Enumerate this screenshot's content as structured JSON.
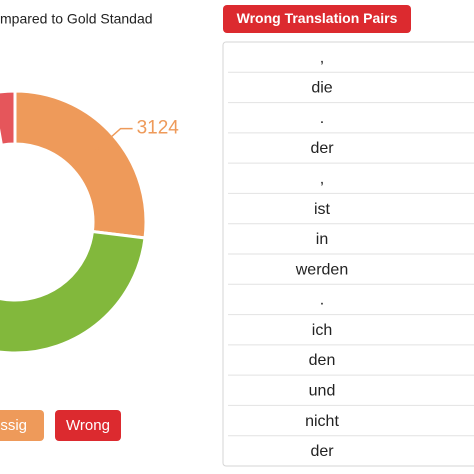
{
  "chart_data": {
    "type": "pie",
    "title": "mpared to Gold Standad",
    "categories": [
      "issig",
      null,
      "Wrong"
    ],
    "values": [
      3124,
      8148,
      322
    ],
    "value_labels": [
      "3124",
      null,
      null
    ],
    "colors": [
      "#ee9a5a",
      "#82b83c",
      "#e5565b"
    ],
    "legend_colors": [
      "#ee9a5a",
      null,
      "#dc2a2f"
    ]
  },
  "panel": {
    "button": "Wrong Translation Pairs",
    "rows": [
      ",",
      "die",
      ".",
      "der",
      ",",
      "ist",
      "in",
      "werden",
      ".",
      "ich",
      "den",
      "und",
      "nicht",
      "der"
    ]
  }
}
